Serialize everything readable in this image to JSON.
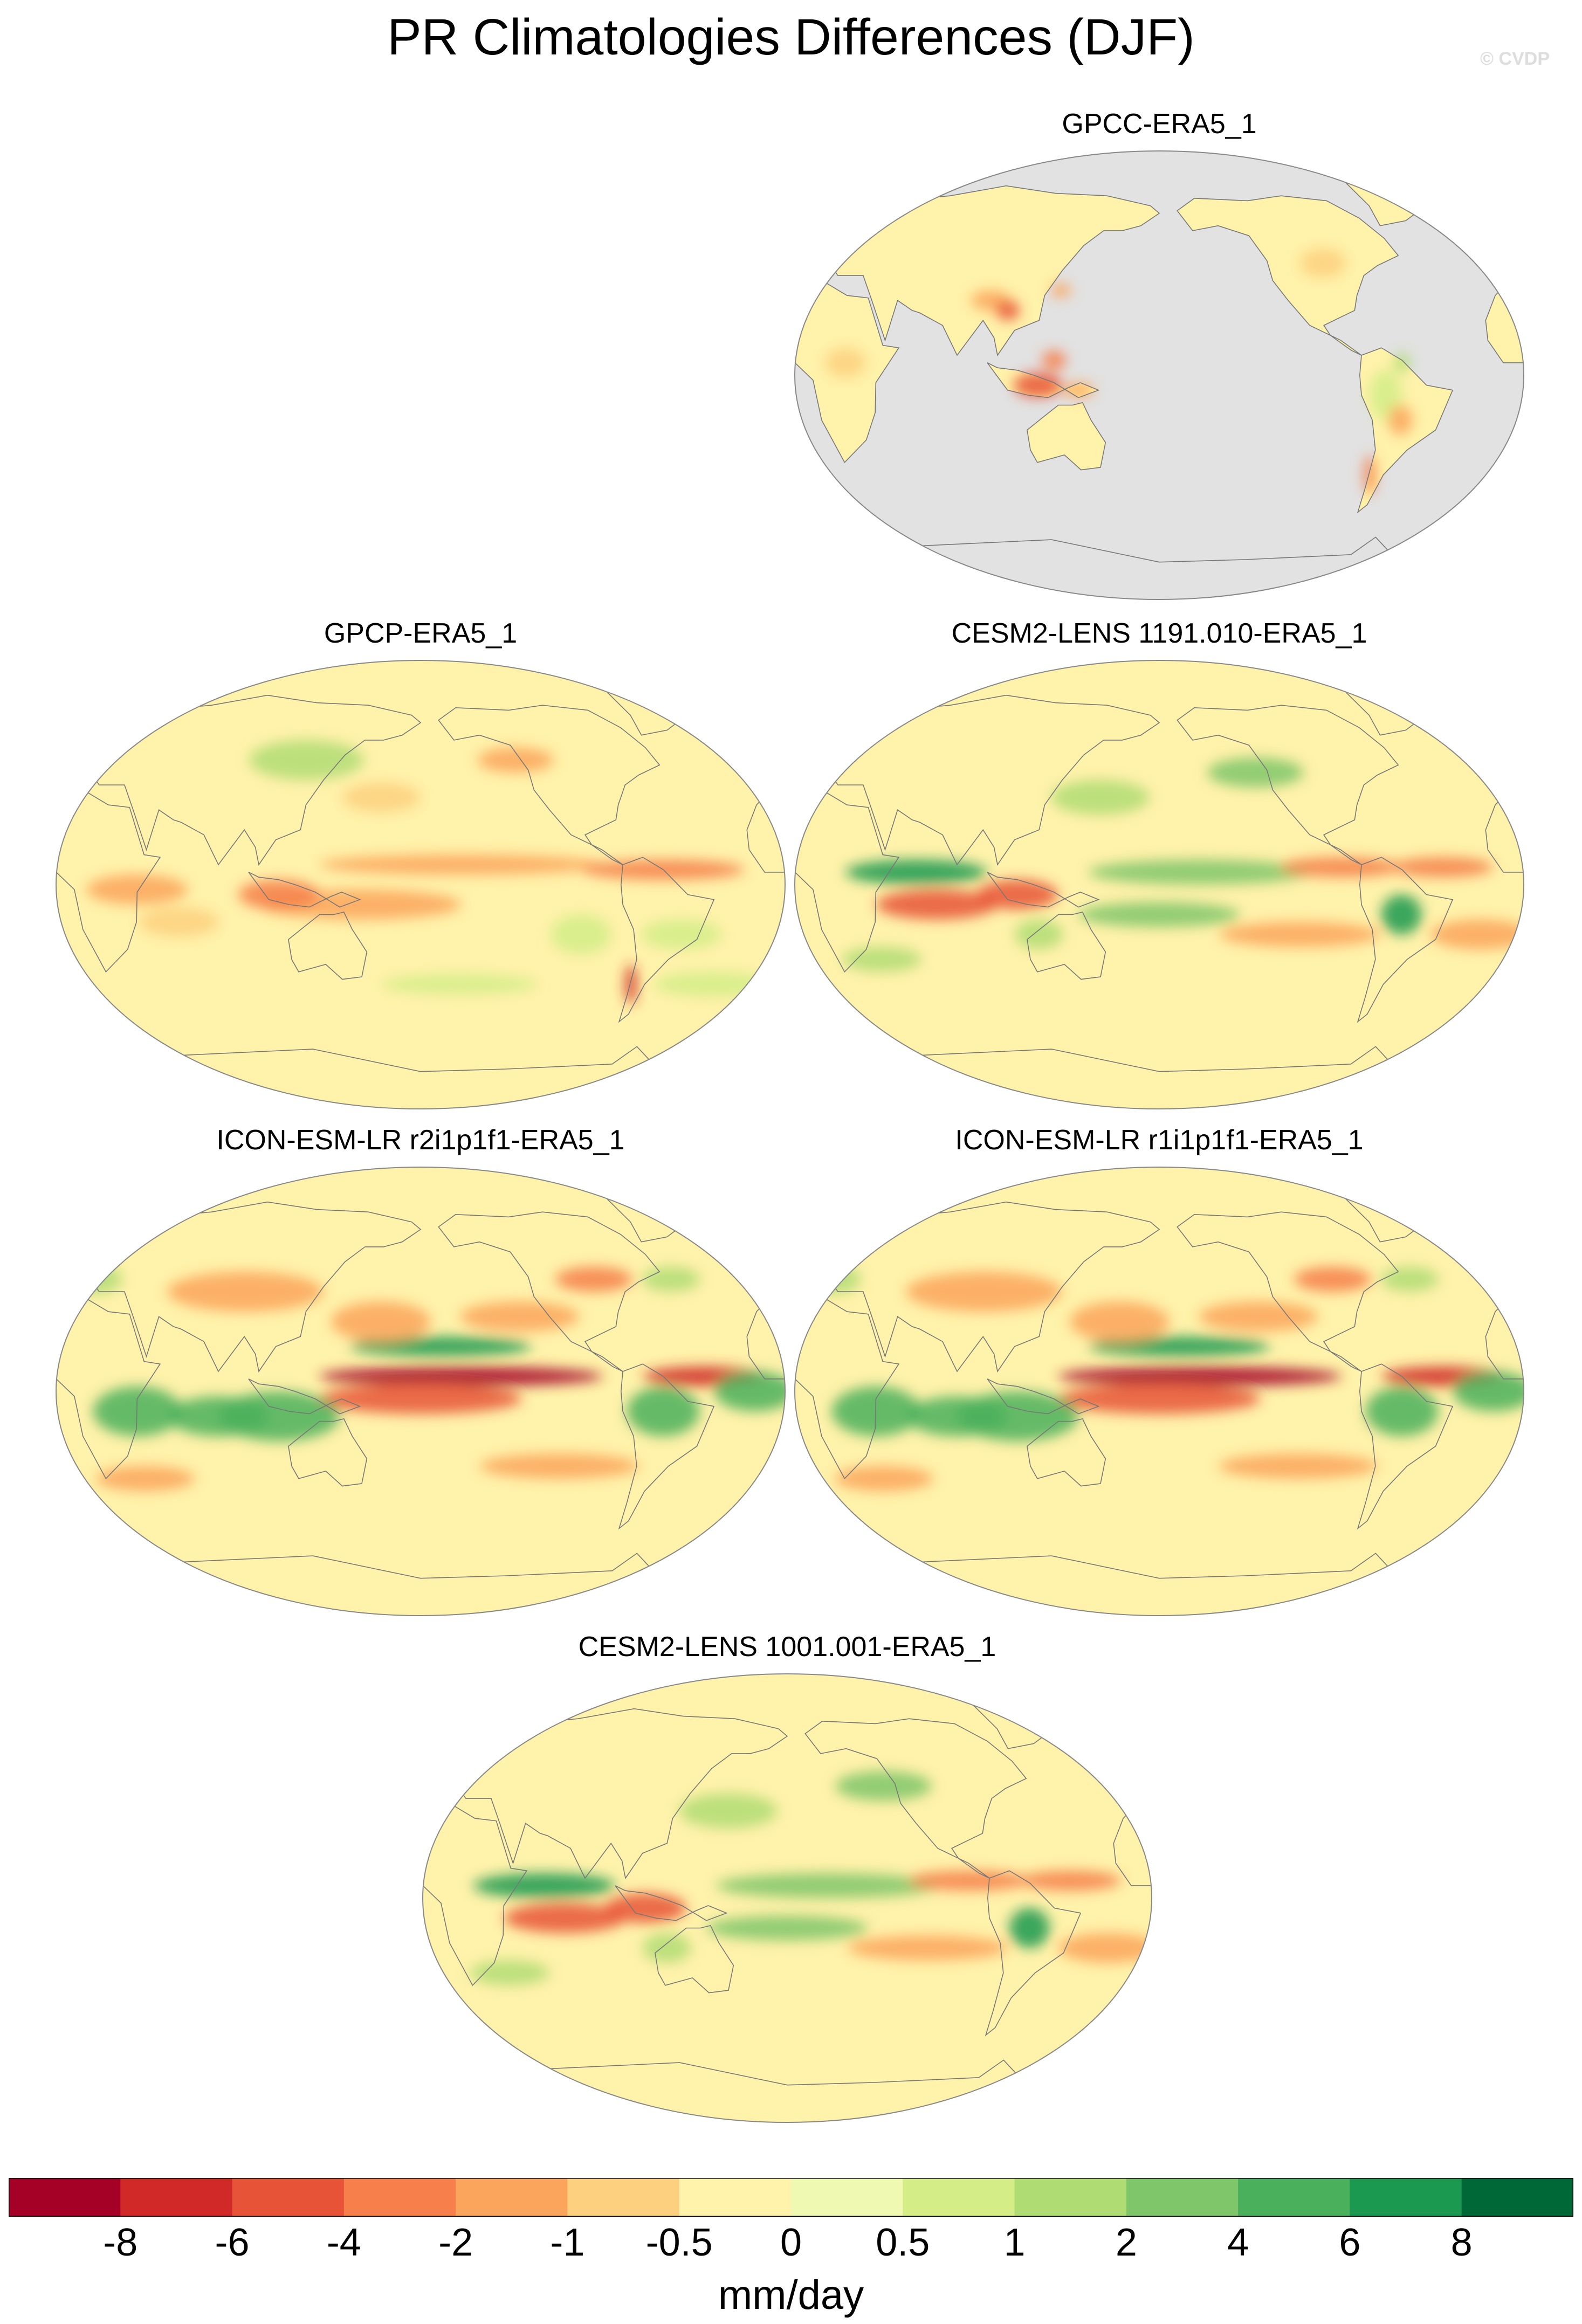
{
  "title": "PR Climatologies Differences (DJF)",
  "watermark": "© CVDP",
  "panels": [
    {
      "id": "gpcc",
      "title": "GPCC-ERA5_1",
      "ocean_masked": true,
      "pattern": "gpcc"
    },
    {
      "id": "gpcp",
      "title": "GPCP-ERA5_1",
      "ocean_masked": false,
      "pattern": "gpcp"
    },
    {
      "id": "cesm1191",
      "title": "CESM2-LENS 1191.010-ERA5_1",
      "ocean_masked": false,
      "pattern": "cesm"
    },
    {
      "id": "icon_r2",
      "title": "ICON-ESM-LR r2i1p1f1-ERA5_1",
      "ocean_masked": false,
      "pattern": "icon"
    },
    {
      "id": "icon_r1",
      "title": "ICON-ESM-LR r1i1p1f1-ERA5_1",
      "ocean_masked": false,
      "pattern": "icon"
    },
    {
      "id": "cesm1001",
      "title": "CESM2-LENS 1001.001-ERA5_1",
      "ocean_masked": false,
      "pattern": "cesm"
    }
  ],
  "colorbar": {
    "units": "mm/day",
    "labels": [
      "-8",
      "-6",
      "-4",
      "-2",
      "-1",
      "-0.5",
      "0",
      "0.5",
      "1",
      "2",
      "4",
      "6",
      "8"
    ],
    "colors": [
      "#a50026",
      "#d02927",
      "#e75337",
      "#f67f4b",
      "#fba55c",
      "#fdd07f",
      "#fff2aa",
      "#f0f9b2",
      "#d4ed87",
      "#b0dc74",
      "#7fc66a",
      "#4bb05c",
      "#1b9950",
      "#006837"
    ]
  },
  "colors": {
    "masked_gray": "#e2e2e2",
    "coastline": "#777777"
  }
}
